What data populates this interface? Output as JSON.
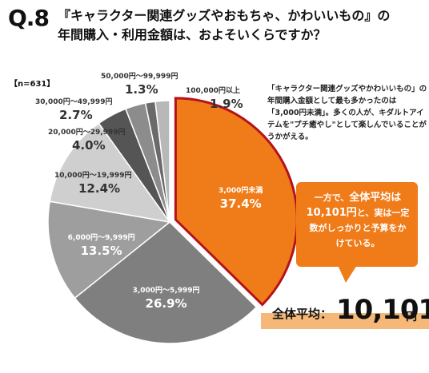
{
  "question": {
    "number": "Q.8",
    "title_line1": "『キャラクター関連グッズやおもちゃ、かわいいもの』の",
    "title_line2": "年間購入・利用金額は、およそいくらですか？"
  },
  "sample": "【n=631】",
  "description": "「キャラクター関連グッズやかわいいもの」の年間購入金額として最も多かったのは「3,000円未満」。多くの人が、キダルトアイテムを\"プチ癒やし\"として楽しんでいることがうかがえる。",
  "callout": {
    "pre": "一方で、",
    "bold1": "全体平均は",
    "bold2": "10,101円",
    "post": "と、実は一定数がしっかりと予算をかけている。"
  },
  "average": {
    "label": "全体平均：",
    "value": "10,101",
    "unit": "円"
  },
  "colors": {
    "highlight": "#f07b19",
    "highlight_border": "#b5121b"
  },
  "chart_data": {
    "type": "pie",
    "slices": [
      {
        "label": "3,000円未満",
        "value": 37.4,
        "color": "#f07b19"
      },
      {
        "label": "3,000円〜5,999円",
        "value": 26.9,
        "color": "#7f7f7f"
      },
      {
        "label": "6,000円〜9,999円",
        "value": 13.5,
        "color": "#9e9e9e"
      },
      {
        "label": "10,000円〜19,999円",
        "value": 12.4,
        "color": "#cfcfcf"
      },
      {
        "label": "20,000円〜29,999円",
        "value": 4.0,
        "color": "#555555"
      },
      {
        "label": "30,000円〜49,999円",
        "value": 2.7,
        "color": "#8c8c8c"
      },
      {
        "label": "50,000円〜99,999円",
        "value": 1.3,
        "color": "#6a6a6a"
      },
      {
        "label": "100,000円以上",
        "value": 1.9,
        "color": "#b8b8b8"
      }
    ],
    "unit": "%"
  }
}
